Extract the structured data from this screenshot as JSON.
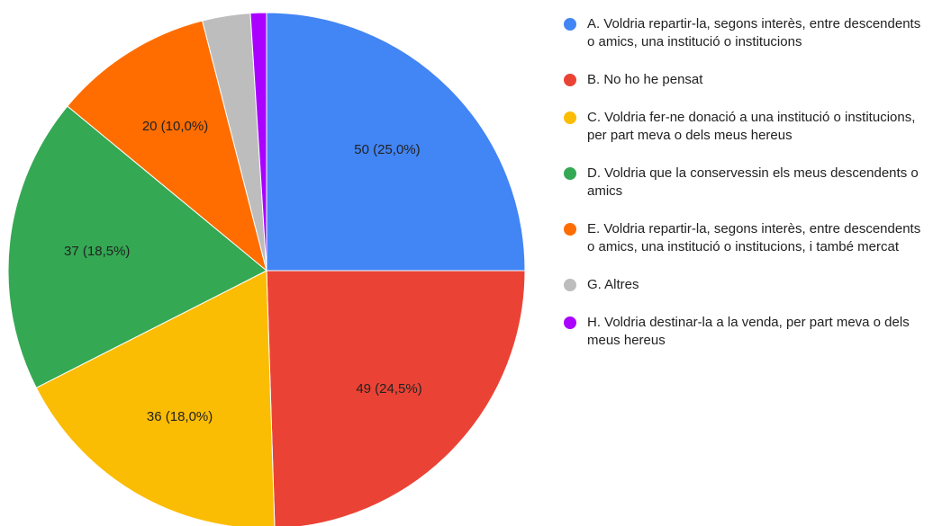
{
  "chart_data": {
    "type": "pie",
    "categories": [
      "A. Voldria repartir-la, segons interès, entre descendents o amics, una institució o institucions",
      "B. No ho he pensat",
      "C. Voldria fer-ne donació a una institució o institucions, per part meva o dels meus hereus",
      "D. Voldria que la conservessin els meus descendents o amics",
      "E. Voldria repartir-la, segons interès, entre descendents o amics, una institució o institucions, i també mercat",
      "G. Altres",
      "H. Voldria destinar-la a la venda, per part meva o dels meus hereus"
    ],
    "values": [
      50,
      49,
      36,
      37,
      20,
      6,
      2
    ],
    "value_labels": [
      "50 (25,0%)",
      "49 (24,5%)",
      "36 (18,0%)",
      "37 (18,5%)",
      "20 (10,0%)",
      null,
      null
    ],
    "colors": [
      "#4285f4",
      "#ea4335",
      "#fbbc04",
      "#34a853",
      "#ff6d01",
      "#bdbdbd",
      "#aa00ff"
    ],
    "legend": "right"
  }
}
